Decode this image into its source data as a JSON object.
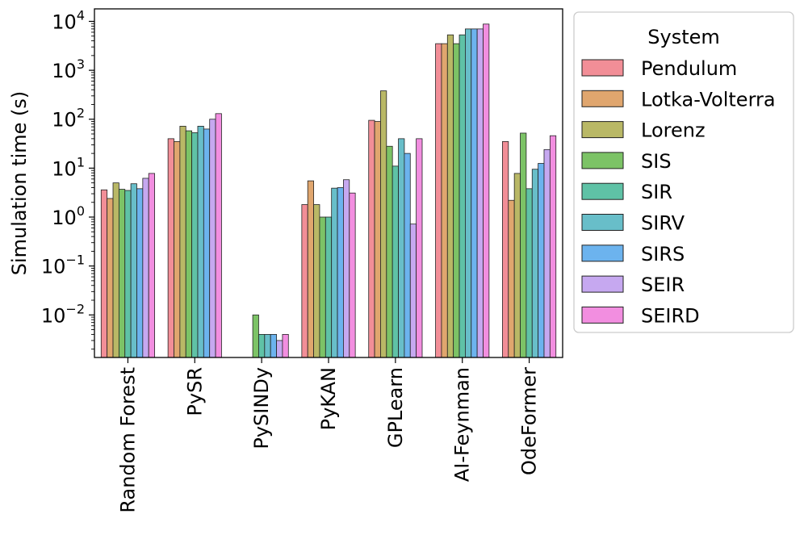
{
  "chart_data": {
    "type": "bar",
    "scale": "log",
    "ylabel": "Simulation time (s)",
    "xlabel": "",
    "ylim": [
      0.00135,
      18000
    ],
    "y_ticks": [
      {
        "value": 0.01,
        "base": "10",
        "exp": "−2"
      },
      {
        "value": 0.1,
        "base": "10",
        "exp": "−1"
      },
      {
        "value": 1,
        "base": "10",
        "exp": "0"
      },
      {
        "value": 10,
        "base": "10",
        "exp": "1"
      },
      {
        "value": 100,
        "base": "10",
        "exp": "2"
      },
      {
        "value": 1000,
        "base": "10",
        "exp": "3"
      },
      {
        "value": 10000,
        "base": "10",
        "exp": "4"
      }
    ],
    "categories": [
      "Random Forest",
      "PySR",
      "PySINDy",
      "PyKAN",
      "GPLearn",
      "AI-Feynman",
      "OdeFormer"
    ],
    "legend_title": "System",
    "legend_position": "outside-right",
    "series": [
      {
        "name": "Pendulum",
        "color": "#f28e97",
        "values": [
          3.6,
          40,
          null,
          1.8,
          95,
          3500,
          35
        ]
      },
      {
        "name": "Lotka-Volterra",
        "color": "#e0a66e",
        "values": [
          2.4,
          35,
          null,
          5.5,
          90,
          3500,
          2.2
        ]
      },
      {
        "name": "Lorenz",
        "color": "#b9b866",
        "values": [
          5.0,
          72,
          null,
          1.8,
          380,
          5300,
          7.8
        ]
      },
      {
        "name": "SIS",
        "color": "#7cc366",
        "values": [
          3.7,
          58,
          0.01,
          1.0,
          28,
          3500,
          52
        ]
      },
      {
        "name": "SIR",
        "color": "#5fc2a6",
        "values": [
          3.5,
          53,
          0.004,
          1.0,
          11,
          5300,
          3.8
        ]
      },
      {
        "name": "SIRV",
        "color": "#68bec9",
        "values": [
          4.8,
          72,
          0.004,
          3.9,
          40,
          7000,
          9.5
        ]
      },
      {
        "name": "SIRS",
        "color": "#6cb3ee",
        "values": [
          3.8,
          63,
          0.004,
          4.0,
          20,
          7000,
          12.5
        ]
      },
      {
        "name": "SEIR",
        "color": "#c6a8f0",
        "values": [
          6.2,
          100,
          0.003,
          5.8,
          0.72,
          7000,
          24
        ]
      },
      {
        "name": "SEIRD",
        "color": "#f28ee0",
        "values": [
          7.8,
          130,
          0.004,
          3.1,
          40,
          8800,
          46
        ]
      }
    ]
  }
}
